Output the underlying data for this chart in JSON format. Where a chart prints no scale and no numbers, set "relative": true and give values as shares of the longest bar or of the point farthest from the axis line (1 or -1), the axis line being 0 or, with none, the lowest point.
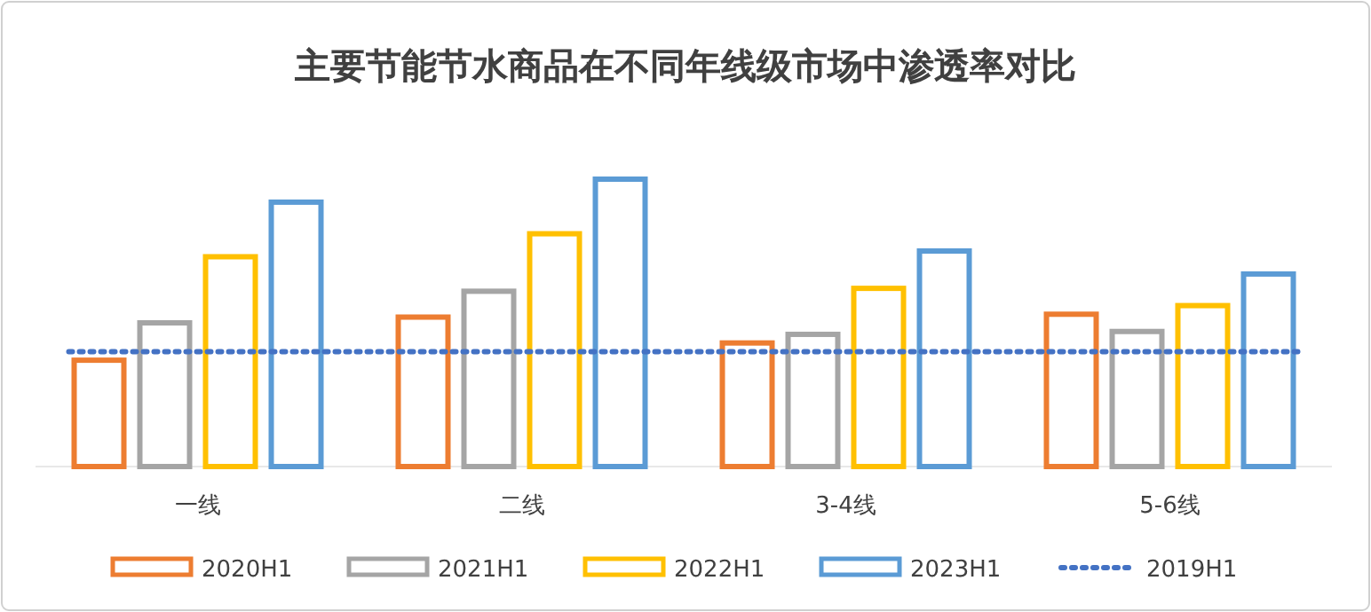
{
  "chart_data": {
    "type": "bar",
    "title": "主要节能节水商品在不同年线级市场中渗透率对比",
    "relative": true,
    "legend": "bottom",
    "categories": [
      "一线",
      "二线",
      "3-4线",
      "5-6线"
    ],
    "series": [
      {
        "name": "2020H1",
        "color": "#ed7d31",
        "values": [
          0.37,
          0.52,
          0.43,
          0.53
        ]
      },
      {
        "name": "2021H1",
        "color": "#a5a5a5",
        "values": [
          0.5,
          0.61,
          0.46,
          0.47
        ]
      },
      {
        "name": "2022H1",
        "color": "#ffc000",
        "values": [
          0.73,
          0.81,
          0.62,
          0.56
        ]
      },
      {
        "name": "2023H1",
        "color": "#5b9bd5",
        "values": [
          0.92,
          1,
          0.75,
          0.67
        ]
      }
    ],
    "ref_lines": [
      {
        "axis": "y",
        "value": 0.4,
        "label": "2019H1",
        "color": "#4472c4",
        "line_style": "dotted"
      }
    ]
  }
}
